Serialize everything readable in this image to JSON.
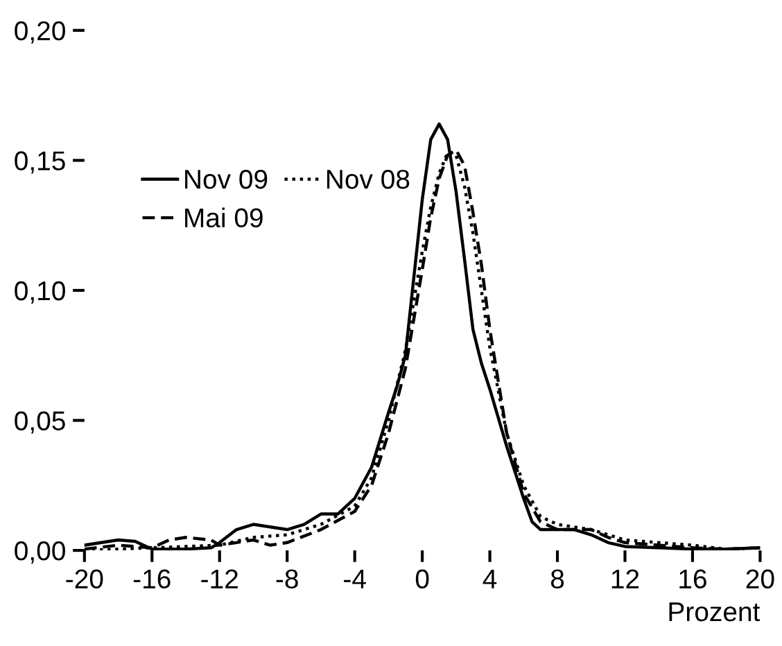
{
  "chart_data": {
    "type": "line",
    "xlabel": "Prozent",
    "xlim": [
      -20,
      20
    ],
    "xticks": [
      -20,
      -16,
      -12,
      -8,
      -4,
      0,
      4,
      8,
      12,
      16,
      20
    ],
    "ylim": [
      0,
      0.2
    ],
    "yticks": [
      {
        "value": 0,
        "label": "0,00"
      },
      {
        "value": 0.05,
        "label": "0,05"
      },
      {
        "value": 0.1,
        "label": "0,10"
      },
      {
        "value": 0.15,
        "label": "0,15"
      },
      {
        "value": 0.2,
        "label": "0,20"
      }
    ],
    "grid": false,
    "legend": "top left",
    "series": [
      {
        "name": "Nov 09",
        "color": "#000000",
        "line_style": "solid",
        "x": [
          -20,
          -18,
          -17,
          -16,
          -14,
          -12.5,
          -12,
          -11,
          -10,
          -9,
          -8,
          -7,
          -6,
          -5,
          -4,
          -3,
          -2,
          -1.5,
          -1,
          -0.5,
          0,
          0.5,
          1,
          1.5,
          2,
          2.5,
          3,
          3.5,
          4,
          5,
          6,
          6.5,
          7,
          8,
          9,
          10,
          11,
          12,
          14,
          16,
          18,
          20
        ],
        "values": [
          0.002,
          0.004,
          0.0035,
          0.0005,
          0.0005,
          0.001,
          0.003,
          0.008,
          0.01,
          0.009,
          0.008,
          0.01,
          0.014,
          0.014,
          0.02,
          0.032,
          0.053,
          0.063,
          0.075,
          0.105,
          0.135,
          0.158,
          0.164,
          0.158,
          0.138,
          0.112,
          0.085,
          0.072,
          0.062,
          0.04,
          0.02,
          0.011,
          0.008,
          0.008,
          0.008,
          0.006,
          0.003,
          0.0015,
          0.001,
          0.0005,
          0.0005,
          0.001
        ]
      },
      {
        "name": "Mai 09",
        "color": "#000000",
        "line_style": "dashed",
        "x": [
          -20,
          -18,
          -16,
          -15,
          -14,
          -12.5,
          -12,
          -10,
          -9,
          -8,
          -6,
          -4,
          -3,
          -2,
          -1,
          0,
          0.5,
          1,
          1.5,
          2,
          2.5,
          3,
          3.5,
          4,
          5,
          6,
          7,
          8,
          9,
          10,
          11,
          12,
          14,
          16,
          18,
          20
        ],
        "values": [
          0.0005,
          0.002,
          0.001,
          0.004,
          0.005,
          0.004,
          0.002,
          0.004,
          0.002,
          0.003,
          0.008,
          0.015,
          0.025,
          0.045,
          0.07,
          0.108,
          0.128,
          0.143,
          0.152,
          0.154,
          0.148,
          0.13,
          0.11,
          0.085,
          0.045,
          0.022,
          0.011,
          0.008,
          0.008,
          0.008,
          0.005,
          0.003,
          0.002,
          0.001,
          0.0005,
          0.001
        ]
      },
      {
        "name": "Nov 08",
        "color": "#000000",
        "line_style": "dotted",
        "x": [
          -20,
          -16,
          -12,
          -10,
          -8,
          -6,
          -4,
          -3,
          -2,
          -1,
          0,
          0.5,
          1,
          1.5,
          2,
          2.5,
          3,
          3.5,
          4,
          5,
          6,
          7,
          8,
          9,
          10,
          12,
          14,
          16,
          18,
          20
        ],
        "values": [
          0.0,
          0.001,
          0.002,
          0.005,
          0.006,
          0.01,
          0.017,
          0.028,
          0.05,
          0.077,
          0.115,
          0.132,
          0.145,
          0.153,
          0.152,
          0.14,
          0.122,
          0.1,
          0.078,
          0.045,
          0.025,
          0.013,
          0.01,
          0.009,
          0.008,
          0.004,
          0.003,
          0.002,
          0.0005,
          0.001
        ]
      }
    ]
  }
}
